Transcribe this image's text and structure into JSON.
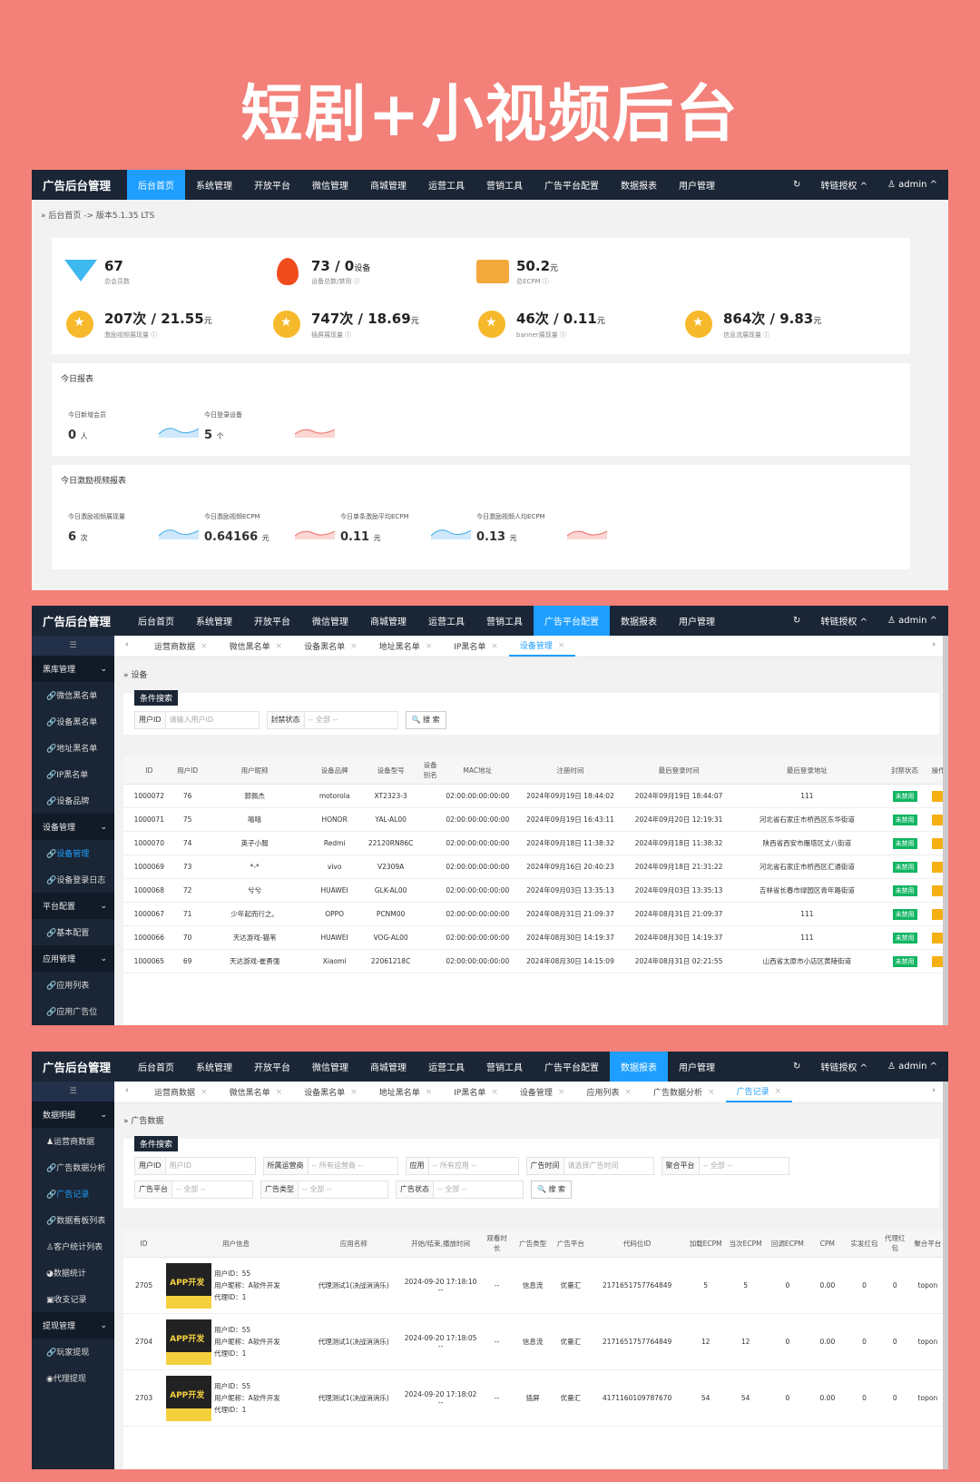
{
  "headline": "短剧+小视频后台",
  "top_nav": {
    "brand": "广告后台管理",
    "items": [
      "后台首页",
      "系统管理",
      "开放平台",
      "微信管理",
      "商城管理",
      "运营工具",
      "营销工具",
      "广告平台配置",
      "数据报表",
      "用户管理"
    ],
    "right": {
      "auth": "转链授权 ^",
      "user": "♙ admin ^"
    }
  },
  "s1": {
    "breadcrumb": "» 后台首页 -> 版本5.1.35 LTS",
    "stats_row1": [
      {
        "value": "67",
        "unit": "",
        "label": "总会员数"
      },
      {
        "value": "73 / 0",
        "unit": "设备",
        "label": "设备总数/禁用 ⓘ"
      },
      {
        "value": "50.2",
        "unit": "元",
        "label": "总ECPM ⓘ"
      }
    ],
    "stats_row2": [
      {
        "value": "207次 / 21.55",
        "unit": "元",
        "label": "激励视频展现量 ⓘ"
      },
      {
        "value": "747次 / 18.69",
        "unit": "元",
        "label": "插屏展现量 ⓘ"
      },
      {
        "value": "46次 / 0.11",
        "unit": "元",
        "label": "banner展现量 ⓘ"
      },
      {
        "value": "864次 / 9.83",
        "unit": "元",
        "label": "信息流展现量 ⓘ"
      }
    ],
    "today": {
      "title": "今日报表",
      "items": [
        {
          "label": "今日新增会员",
          "value": "0",
          "unit": "人"
        },
        {
          "label": "今日登录设备",
          "value": "5",
          "unit": "个"
        }
      ]
    },
    "reward": {
      "title": "今日激励视频报表",
      "items": [
        {
          "label": "今日激励视频展现量",
          "value": "6",
          "unit": "次"
        },
        {
          "label": "今日激励视频ECPM",
          "value": "0.64166",
          "unit": "元"
        },
        {
          "label": "今日单条激励平均ECPM",
          "value": "0.11",
          "unit": "元"
        },
        {
          "label": "今日激励视频人均ECPM",
          "value": "0.13",
          "unit": "元"
        }
      ]
    }
  },
  "s2": {
    "sidebar": [
      {
        "type": "grp",
        "label": "黑库管理"
      },
      {
        "type": "it",
        "label": "🔗微信黑名单"
      },
      {
        "type": "it",
        "label": "🔗设备黑名单"
      },
      {
        "type": "it",
        "label": "🔗地址黑名单"
      },
      {
        "type": "it",
        "label": "🔗IP黑名单"
      },
      {
        "type": "it",
        "label": "🔗设备品牌"
      },
      {
        "type": "grp",
        "label": "设备管理"
      },
      {
        "type": "it",
        "label": "🔗设备管理",
        "on": true
      },
      {
        "type": "it",
        "label": "🔗设备登录日志"
      },
      {
        "type": "grp",
        "label": "平台配置"
      },
      {
        "type": "it",
        "label": "🔗基本配置"
      },
      {
        "type": "grp",
        "label": "应用管理"
      },
      {
        "type": "it",
        "label": "🔗应用列表"
      },
      {
        "type": "it",
        "label": "🔗应用广告位"
      }
    ],
    "tabs": [
      "运营商数据",
      "微信黑名单",
      "设备黑名单",
      "地址黑名单",
      "IP黑名单",
      "设备管理"
    ],
    "subtitle": "» 设备",
    "filter_tag": "条件搜索",
    "filters": {
      "user_id_label": "用户ID",
      "user_id_ph": "请输入用户ID",
      "status_label": "封禁状态",
      "status_val": "-- 全部 --",
      "search": "🔍 搜 索"
    },
    "headers": [
      "ID",
      "用户ID",
      "用户昵称",
      "设备品牌",
      "设备型号",
      "设备别名",
      "MAC地址",
      "注册时间",
      "最后登录时间",
      "最后登录地址",
      "封禁状态",
      "操作"
    ],
    "rows": [
      [
        "1000072",
        "76",
        "郭佩杰",
        "motorola",
        "XT2323-3",
        "",
        "02:00:00:00:00:00",
        "2024年09月19日 18:44:02",
        "2024年09月19日 18:44:07",
        "111",
        "未禁用"
      ],
      [
        "1000071",
        "75",
        "嘻嘻",
        "HONOR",
        "YAL-AL00",
        "",
        "02:00:00:00:00:00",
        "2024年09月19日 16:43:11",
        "2024年09月20日 12:19:31",
        "河北省石家庄市桥西区东华街道",
        "未禁用"
      ],
      [
        "1000070",
        "74",
        "英子小服",
        "Redmi",
        "22120RN86C",
        "",
        "02:00:00:00:00:00",
        "2024年09月18日 11:38:32",
        "2024年09月18日 11:38:32",
        "陕西省西安市雁塔区丈八街道",
        "未禁用"
      ],
      [
        "1000069",
        "73",
        "*-*",
        "vivo",
        "V2309A",
        "",
        "02:00:00:00:00:00",
        "2024年09月16日 20:40:23",
        "2024年09月18日 21:31:22",
        "河北省石家庄市桥西区汇通街道",
        "未禁用"
      ],
      [
        "1000068",
        "72",
        "兮兮",
        "HUAWEI",
        "GLK-AL00",
        "",
        "02:00:00:00:00:00",
        "2024年09月03日 13:35:13",
        "2024年09月03日 13:35:13",
        "吉林省长春市绿园区青年路街道",
        "未禁用"
      ],
      [
        "1000067",
        "71",
        "少年起而行之。",
        "OPPO",
        "PCNM00",
        "",
        "02:00:00:00:00:00",
        "2024年08月31日 21:09:37",
        "2024年08月31日 21:09:37",
        "111",
        "未禁用"
      ],
      [
        "1000066",
        "70",
        "天达游戏-猫苇",
        "HUAWEI",
        "VOG-AL00",
        "",
        "02:00:00:00:00:00",
        "2024年08月30日 14:19:37",
        "2024年08月30日 14:19:37",
        "111",
        "未禁用"
      ],
      [
        "1000065",
        "69",
        "天达游戏-崔勇强",
        "Xiaomi",
        "22061218C",
        "",
        "02:00:00:00:00:00",
        "2024年08月30日 14:15:09",
        "2024年08月31日 02:21:55",
        "山西省太原市小店区黄陵街道",
        "未禁用"
      ]
    ]
  },
  "s3": {
    "sidebar": [
      {
        "type": "grp",
        "label": "数据明细"
      },
      {
        "type": "it",
        "label": "♟运营商数据"
      },
      {
        "type": "it",
        "label": "🔗广告数据分析"
      },
      {
        "type": "it",
        "label": "🔗广告记录",
        "on": true
      },
      {
        "type": "it",
        "label": "🔗数据看板列表"
      },
      {
        "type": "it",
        "label": "♙客户统计列表"
      },
      {
        "type": "it",
        "label": "◕数据统计"
      },
      {
        "type": "it",
        "label": "▣收支记录"
      },
      {
        "type": "grp",
        "label": "提现管理"
      },
      {
        "type": "it",
        "label": "🔗玩家提现"
      },
      {
        "type": "it",
        "label": "◉代理提现"
      }
    ],
    "tabs": [
      "运营商数据",
      "微信黑名单",
      "设备黑名单",
      "地址黑名单",
      "IP黑名单",
      "设备管理",
      "应用列表",
      "广告数据分析",
      "广告记录"
    ],
    "subtitle": "» 广告数据",
    "filter_tag": "条件搜索",
    "filter_row1": [
      {
        "label": "用户ID",
        "val": "用户ID",
        "w": 100
      },
      {
        "label": "所属运营商",
        "val": "-- 所有运营商 --",
        "w": 100
      },
      {
        "label": "应用",
        "val": "-- 所有应用 --",
        "w": 100
      },
      {
        "label": "广告时间",
        "val": "请选择广告时间",
        "w": 100
      },
      {
        "label": "聚合平台",
        "val": "-- 全部 --",
        "w": 100
      }
    ],
    "filter_row2": [
      {
        "label": "广告平台",
        "val": "-- 全部 --",
        "w": 90
      },
      {
        "label": "广告类型",
        "val": "-- 全部 --",
        "w": 100
      },
      {
        "label": "广告状态",
        "val": "-- 全部 --",
        "w": 100
      }
    ],
    "search": "🔍 搜 索",
    "headers": [
      "ID",
      "用户信息",
      "应用名称",
      "开始/结束,播放时间",
      "观看时长",
      "广告类型",
      "广告平台",
      "代码位ID",
      "加载ECPM",
      "当次ECPM",
      "回调ECPM",
      "CPM",
      "实发红包",
      "代理红包",
      "聚合平台"
    ],
    "thumb_text": "APP开发",
    "rows": [
      {
        "id": "2705",
        "uid": "用户ID：55",
        "nick": "用户昵称：A软件开发",
        "agent": "代理ID：1",
        "app": "代理测试1(决战消消乐)",
        "time": "2024-09-20 17:18:10",
        "end": "--",
        "dur": "--",
        "type": "信息流",
        "plat": "优量汇",
        "code": "2171651757764849",
        "load": "5",
        "cur": "5",
        "cb": "0",
        "cpm": "0.00",
        "red": "0",
        "ared": "0",
        "agg": "topon"
      },
      {
        "id": "2704",
        "uid": "用户ID：55",
        "nick": "用户昵称：A软件开发",
        "agent": "代理ID：1",
        "app": "代理测试1(决战消消乐)",
        "time": "2024-09-20 17:18:05",
        "end": "--",
        "dur": "--",
        "type": "信息流",
        "plat": "优量汇",
        "code": "2171651757764849",
        "load": "12",
        "cur": "12",
        "cb": "0",
        "cpm": "0.00",
        "red": "0",
        "ared": "0",
        "agg": "topon"
      },
      {
        "id": "2703",
        "uid": "用户ID：55",
        "nick": "用户昵称：A软件开发",
        "agent": "代理ID：1",
        "app": "代理测试1(决战消消乐)",
        "time": "2024-09-20 17:18:02",
        "end": "--",
        "dur": "--",
        "type": "插屏",
        "plat": "优量汇",
        "code": "4171160109787670",
        "load": "54",
        "cur": "54",
        "cb": "0",
        "cpm": "0.00",
        "red": "0",
        "ared": "0",
        "agg": "topon"
      }
    ]
  }
}
